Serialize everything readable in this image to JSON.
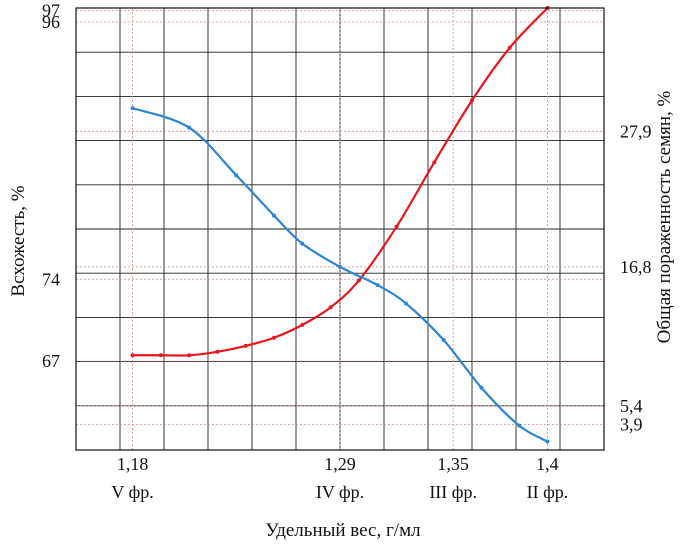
{
  "chart_data": {
    "type": "line",
    "title": "",
    "xlabel": "Удельный вес, г/мл",
    "ylabel_left": "Всхожесть, %",
    "ylabel_right": "Общая пораженность семян, %",
    "x_ticks": [
      {
        "value": 1.18,
        "label": "1,18",
        "sublabel": "V фр."
      },
      {
        "value": 1.29,
        "label": "1,29",
        "sublabel": "IV фр."
      },
      {
        "value": 1.35,
        "label": "1,35",
        "sublabel": "III фр."
      },
      {
        "value": 1.4,
        "label": "1,4",
        "sublabel": "II фр."
      }
    ],
    "xlim": [
      1.15,
      1.43
    ],
    "y_left_ticks": [
      {
        "value": 97,
        "label": "97"
      },
      {
        "value": 96,
        "label": "96"
      },
      {
        "value": 74,
        "label": "74"
      },
      {
        "value": 67,
        "label": "67"
      }
    ],
    "y_left_lim": [
      59.4,
      97.2
    ],
    "y_right_ticks": [
      {
        "value": 27.9,
        "label": "27,9"
      },
      {
        "value": 16.8,
        "label": "16,8"
      },
      {
        "value": 5.4,
        "label": "5,4"
      },
      {
        "value": 3.9,
        "label": "3,9"
      }
    ],
    "y_right_lim": [
      1.8,
      38.0
    ],
    "grid": true,
    "series": [
      {
        "color": "#e8161e",
        "axis": "left",
        "x": [
          1.18,
          1.195,
          1.21,
          1.225,
          1.24,
          1.255,
          1.27,
          1.285,
          1.3,
          1.32,
          1.34,
          1.36,
          1.38,
          1.4
        ],
        "y": [
          67.5,
          67.5,
          67.5,
          67.8,
          68.3,
          69.0,
          70.1,
          71.6,
          73.9,
          78.5,
          84.0,
          89.3,
          93.8,
          97.2
        ]
      },
      {
        "color": "#2e86d0",
        "axis": "right",
        "x": [
          1.18,
          1.21,
          1.235,
          1.255,
          1.27,
          1.29,
          1.31,
          1.325,
          1.345,
          1.365,
          1.385,
          1.4
        ],
        "y": [
          29.8,
          28.2,
          24.3,
          21.0,
          18.7,
          16.8,
          15.3,
          13.8,
          10.8,
          6.9,
          3.8,
          2.5
        ]
      }
    ]
  }
}
